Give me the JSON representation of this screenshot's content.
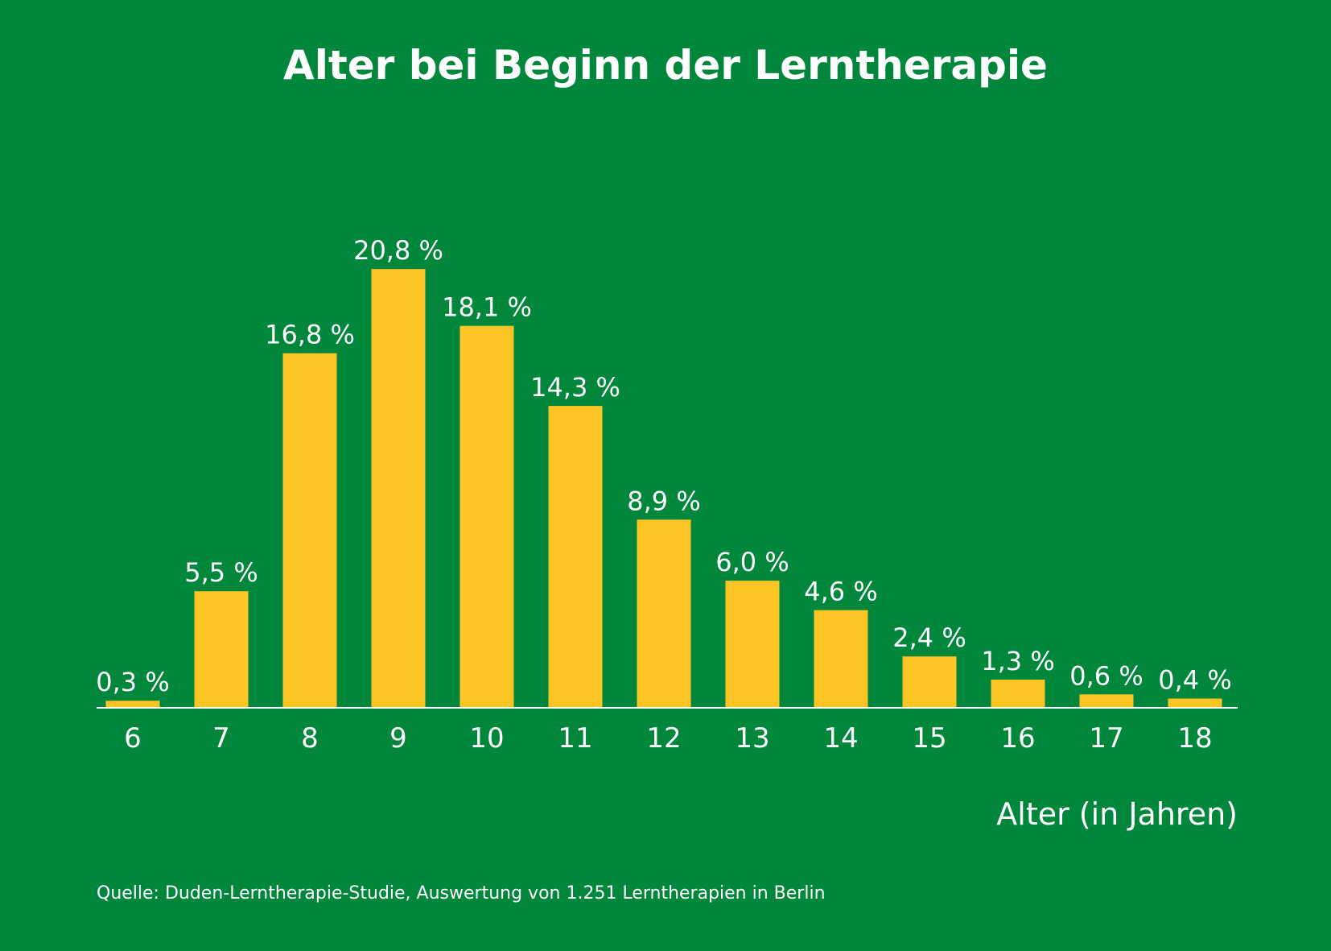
{
  "chart_data": {
    "type": "bar",
    "title": "Alter bei Beginn der Lerntherapie",
    "xlabel": "Alter (in Jahren)",
    "ylabel": "",
    "ylim": [
      0,
      21
    ],
    "grid": false,
    "categories": [
      "6",
      "7",
      "8",
      "9",
      "10",
      "11",
      "12",
      "13",
      "14",
      "15",
      "16",
      "17",
      "18"
    ],
    "values": [
      0.3,
      5.5,
      16.8,
      20.8,
      18.1,
      14.3,
      8.9,
      6.0,
      4.6,
      2.4,
      1.3,
      0.6,
      0.4
    ],
    "value_labels": [
      "0,3 %",
      "5,5 %",
      "16,8 %",
      "20,8 %",
      "18,1 %",
      "14,3 %",
      "8,9 %",
      "6,0 %",
      "4,6 %",
      "2,4 %",
      "1,3 %",
      "0,6 %",
      "0,4 %"
    ],
    "source": "Quelle: Duden-Lerntherapie-Studie, Auswertung von 1.251 Lerntherapien in Berlin"
  },
  "colors": {
    "background": "#00873c",
    "bar": "#fcc524",
    "text": "#ffffff",
    "axis": "#ffffff"
  }
}
